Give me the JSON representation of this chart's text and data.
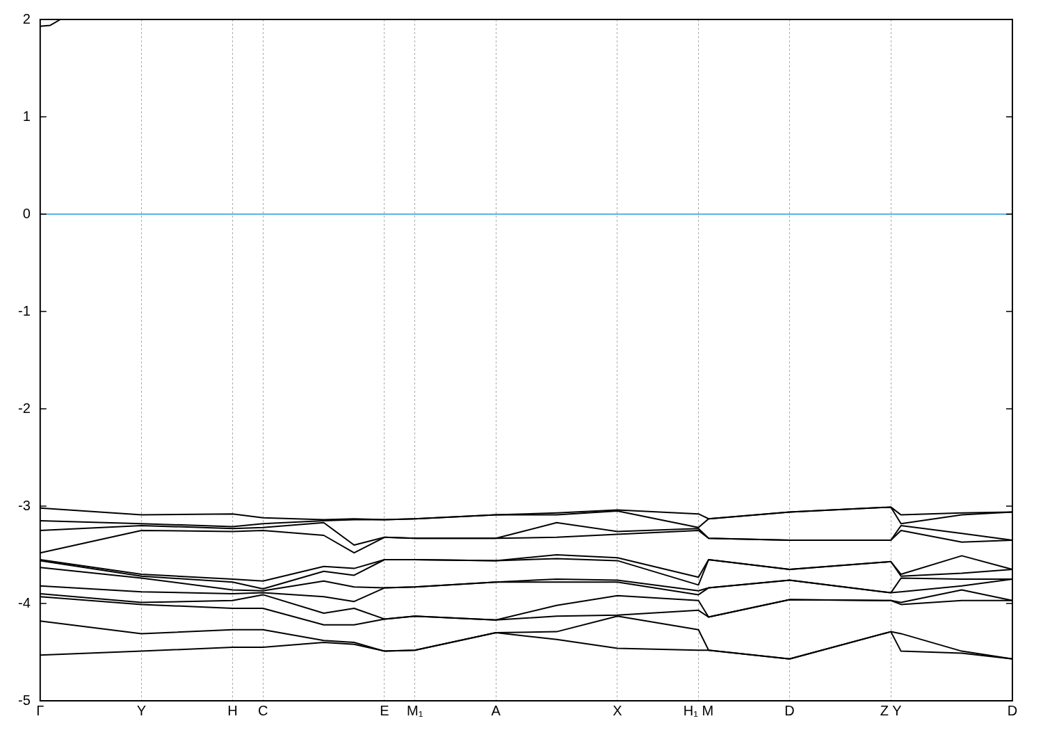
{
  "chart_data": {
    "type": "line",
    "categories": [
      "Γ",
      null,
      null,
      null,
      null,
      null,
      null,
      null,
      null,
      null,
      "Y",
      null,
      null,
      null,
      null,
      null,
      null,
      null,
      null,
      "H",
      null,
      null,
      "C",
      null,
      null,
      null,
      null,
      null,
      null,
      null,
      null,
      null,
      null,
      null,
      "E",
      null,
      null,
      "M₁",
      null,
      null,
      null,
      null,
      null,
      null,
      null,
      "A",
      null,
      null,
      null,
      null,
      null,
      null,
      null,
      null,
      null,
      null,
      null,
      "X",
      null,
      null,
      null,
      null,
      null,
      null,
      null,
      "H₁ M",
      null,
      null,
      null,
      null,
      null,
      null,
      null,
      null,
      "D",
      null,
      null,
      null,
      null,
      null,
      null,
      null,
      null,
      null,
      "Z Y",
      null,
      null,
      null,
      null,
      null,
      null,
      null,
      null,
      null,
      null,
      null,
      "D"
    ],
    "series": [
      {
        "color": "#000000",
        "values": [
          1.93,
          1.94,
          2.0,
          null,
          null,
          null,
          null,
          null,
          null,
          null,
          null,
          null,
          null,
          null,
          null,
          null,
          null,
          null,
          null,
          null,
          null,
          null,
          null,
          null,
          null,
          null,
          null,
          null,
          null,
          null,
          null,
          null,
          null,
          null,
          null,
          null,
          null,
          null,
          null,
          null,
          null,
          null,
          null,
          null,
          null,
          null,
          null,
          null,
          null,
          null,
          null,
          null,
          null,
          null,
          null,
          null,
          null,
          null,
          null,
          null,
          null,
          null,
          null,
          null,
          null,
          null,
          null,
          null,
          null,
          null,
          null,
          null,
          null,
          null,
          null,
          null,
          null,
          null,
          null,
          null,
          null,
          null,
          null,
          null,
          null,
          null,
          null,
          null,
          null,
          null,
          null,
          null,
          null,
          null,
          null,
          null,
          null
        ]
      },
      {
        "color": "#000000",
        "values": [
          -3.02,
          null,
          null,
          null,
          null,
          null,
          null,
          null,
          null,
          null,
          -3.09,
          null,
          null,
          null,
          null,
          null,
          null,
          null,
          null,
          -3.08,
          null,
          null,
          -3.12,
          null,
          null,
          null,
          null,
          null,
          -3.14,
          null,
          null,
          -3.13,
          null,
          null,
          -3.14,
          null,
          null,
          -3.13,
          null,
          null,
          null,
          null,
          null,
          null,
          null,
          -3.09,
          null,
          null,
          null,
          null,
          null,
          -3.07,
          null,
          null,
          null,
          null,
          null,
          -3.04,
          null,
          null,
          null,
          null,
          null,
          null,
          null,
          -3.08,
          -3.13,
          null,
          null,
          null,
          null,
          null,
          null,
          null,
          -3.06,
          null,
          null,
          null,
          null,
          null,
          null,
          null,
          null,
          null,
          -3.01,
          -3.09,
          null,
          null,
          null,
          null,
          null,
          -3.07,
          null,
          null,
          null,
          null,
          -3.06
        ]
      },
      {
        "color": "#000000",
        "values": [
          -3.15,
          null,
          null,
          null,
          null,
          null,
          null,
          null,
          null,
          null,
          -3.18,
          null,
          null,
          null,
          null,
          null,
          null,
          null,
          null,
          -3.21,
          null,
          null,
          -3.18,
          null,
          null,
          null,
          null,
          null,
          -3.15,
          null,
          null,
          -3.14,
          null,
          null,
          -3.14,
          null,
          null,
          -3.13,
          null,
          null,
          null,
          null,
          null,
          null,
          null,
          -3.09,
          null,
          null,
          null,
          null,
          null,
          -3.09,
          null,
          null,
          null,
          null,
          null,
          -3.05,
          null,
          null,
          null,
          null,
          null,
          null,
          null,
          -3.22,
          -3.13,
          null,
          null,
          null,
          null,
          null,
          null,
          null,
          -3.06,
          null,
          null,
          null,
          null,
          null,
          null,
          null,
          null,
          null,
          -3.01,
          -3.18,
          null,
          null,
          null,
          null,
          null,
          -3.09,
          null,
          null,
          null,
          null,
          -3.06
        ]
      },
      {
        "color": "#000000",
        "values": [
          -3.25,
          null,
          null,
          null,
          null,
          null,
          null,
          null,
          null,
          null,
          -3.2,
          null,
          null,
          null,
          null,
          null,
          null,
          null,
          null,
          -3.23,
          null,
          null,
          -3.22,
          null,
          null,
          null,
          null,
          null,
          -3.17,
          null,
          null,
          -3.4,
          null,
          null,
          -3.32,
          null,
          null,
          -3.33,
          null,
          null,
          null,
          null,
          null,
          null,
          null,
          -3.33,
          null,
          null,
          null,
          null,
          null,
          -3.17,
          null,
          null,
          null,
          null,
          null,
          -3.26,
          null,
          null,
          null,
          null,
          null,
          null,
          null,
          -3.23,
          -3.33,
          null,
          null,
          null,
          null,
          null,
          null,
          null,
          -3.35,
          null,
          null,
          null,
          null,
          null,
          null,
          null,
          null,
          null,
          -3.35,
          -3.2,
          null,
          null,
          null,
          null,
          null,
          -3.28,
          null,
          null,
          null,
          null,
          -3.35
        ]
      },
      {
        "color": "#000000",
        "values": [
          -3.48,
          null,
          null,
          null,
          null,
          null,
          null,
          null,
          null,
          null,
          -3.25,
          null,
          null,
          null,
          null,
          null,
          null,
          null,
          null,
          -3.26,
          null,
          null,
          -3.25,
          null,
          null,
          null,
          null,
          null,
          -3.3,
          null,
          null,
          -3.48,
          null,
          null,
          -3.32,
          null,
          null,
          -3.33,
          null,
          null,
          null,
          null,
          null,
          null,
          null,
          -3.33,
          null,
          null,
          null,
          null,
          null,
          -3.32,
          null,
          null,
          null,
          null,
          null,
          -3.29,
          null,
          null,
          null,
          null,
          null,
          null,
          null,
          -3.25,
          -3.33,
          null,
          null,
          null,
          null,
          null,
          null,
          null,
          -3.35,
          null,
          null,
          null,
          null,
          null,
          null,
          null,
          null,
          null,
          -3.35,
          -3.25,
          null,
          null,
          null,
          null,
          null,
          -3.37,
          null,
          null,
          null,
          null,
          -3.35
        ]
      },
      {
        "color": "#000000",
        "values": [
          -3.55,
          null,
          null,
          null,
          null,
          null,
          null,
          null,
          null,
          null,
          -3.7,
          null,
          null,
          null,
          null,
          null,
          null,
          null,
          null,
          -3.75,
          null,
          null,
          -3.77,
          null,
          null,
          null,
          null,
          null,
          -3.62,
          null,
          null,
          -3.64,
          null,
          null,
          -3.55,
          null,
          null,
          -3.55,
          null,
          null,
          null,
          null,
          null,
          null,
          null,
          -3.56,
          null,
          null,
          null,
          null,
          null,
          -3.5,
          null,
          null,
          null,
          null,
          null,
          -3.53,
          null,
          null,
          null,
          null,
          null,
          null,
          null,
          -3.73,
          -3.55,
          null,
          null,
          null,
          null,
          null,
          null,
          null,
          -3.65,
          null,
          null,
          null,
          null,
          null,
          null,
          null,
          null,
          null,
          -3.57,
          -3.7,
          null,
          null,
          null,
          null,
          null,
          -3.51,
          null,
          null,
          null,
          null,
          -3.65
        ]
      },
      {
        "color": "#000000",
        "values": [
          -3.56,
          null,
          null,
          null,
          null,
          null,
          null,
          null,
          null,
          null,
          -3.72,
          null,
          null,
          null,
          null,
          null,
          null,
          null,
          null,
          -3.78,
          null,
          null,
          -3.85,
          null,
          null,
          null,
          null,
          null,
          -3.67,
          null,
          null,
          -3.71,
          null,
          null,
          -3.55,
          null,
          null,
          -3.55,
          null,
          null,
          null,
          null,
          null,
          null,
          null,
          -3.56,
          null,
          null,
          null,
          null,
          null,
          -3.54,
          null,
          null,
          null,
          null,
          null,
          -3.56,
          null,
          null,
          null,
          null,
          null,
          null,
          null,
          -3.81,
          -3.55,
          null,
          null,
          null,
          null,
          null,
          null,
          null,
          -3.65,
          null,
          null,
          null,
          null,
          null,
          null,
          null,
          null,
          null,
          -3.57,
          -3.72,
          null,
          null,
          null,
          null,
          null,
          -3.69,
          null,
          null,
          null,
          null,
          -3.65
        ]
      },
      {
        "color": "#000000",
        "values": [
          -3.63,
          null,
          null,
          null,
          null,
          null,
          null,
          null,
          null,
          null,
          -3.74,
          null,
          null,
          null,
          null,
          null,
          null,
          null,
          null,
          -3.86,
          null,
          null,
          -3.87,
          null,
          null,
          null,
          null,
          null,
          -3.77,
          null,
          null,
          -3.83,
          null,
          null,
          -3.84,
          null,
          null,
          -3.83,
          null,
          null,
          null,
          null,
          null,
          null,
          null,
          -3.78,
          null,
          null,
          null,
          null,
          null,
          -3.75,
          null,
          null,
          null,
          null,
          null,
          -3.76,
          null,
          null,
          null,
          null,
          null,
          null,
          null,
          -3.87,
          -3.84,
          null,
          null,
          null,
          null,
          null,
          null,
          null,
          -3.76,
          null,
          null,
          null,
          null,
          null,
          null,
          null,
          null,
          null,
          -3.89,
          -3.74,
          null,
          null,
          null,
          null,
          null,
          -3.75,
          null,
          null,
          null,
          null,
          -3.75
        ]
      },
      {
        "color": "#000000",
        "values": [
          -3.82,
          null,
          null,
          null,
          null,
          null,
          null,
          null,
          null,
          null,
          -3.88,
          null,
          null,
          null,
          null,
          null,
          null,
          null,
          null,
          -3.9,
          null,
          null,
          -3.89,
          null,
          null,
          null,
          null,
          null,
          -3.93,
          null,
          null,
          -3.98,
          null,
          null,
          -3.84,
          null,
          null,
          -3.83,
          null,
          null,
          null,
          null,
          null,
          null,
          null,
          -3.78,
          null,
          null,
          null,
          null,
          null,
          -3.78,
          null,
          null,
          null,
          null,
          null,
          -3.78,
          null,
          null,
          null,
          null,
          null,
          null,
          null,
          -3.91,
          -3.84,
          null,
          null,
          null,
          null,
          null,
          null,
          null,
          -3.76,
          null,
          null,
          null,
          null,
          null,
          null,
          null,
          null,
          null,
          -3.89,
          -3.88,
          null,
          null,
          null,
          null,
          null,
          -3.82,
          null,
          null,
          null,
          null,
          -3.75
        ]
      },
      {
        "color": "#000000",
        "values": [
          -3.9,
          null,
          null,
          null,
          null,
          null,
          null,
          null,
          null,
          null,
          -3.99,
          null,
          null,
          null,
          null,
          null,
          null,
          null,
          null,
          -3.97,
          null,
          null,
          -3.91,
          null,
          null,
          null,
          null,
          null,
          -4.1,
          null,
          null,
          -4.05,
          null,
          null,
          -4.16,
          null,
          null,
          -4.13,
          null,
          null,
          null,
          null,
          null,
          null,
          null,
          -4.17,
          null,
          null,
          null,
          null,
          null,
          -4.02,
          null,
          null,
          null,
          null,
          null,
          -3.92,
          null,
          null,
          null,
          null,
          null,
          null,
          null,
          -3.97,
          -4.14,
          null,
          null,
          null,
          null,
          null,
          null,
          null,
          -3.96,
          null,
          null,
          null,
          null,
          null,
          null,
          null,
          null,
          null,
          -3.97,
          -3.99,
          null,
          null,
          null,
          null,
          null,
          -3.86,
          null,
          null,
          null,
          null,
          -3.97
        ]
      },
      {
        "color": "#000000",
        "values": [
          -3.93,
          null,
          null,
          null,
          null,
          null,
          null,
          null,
          null,
          null,
          -4.01,
          null,
          null,
          null,
          null,
          null,
          null,
          null,
          null,
          -4.05,
          null,
          null,
          -4.05,
          null,
          null,
          null,
          null,
          null,
          -4.22,
          null,
          null,
          -4.22,
          null,
          null,
          -4.16,
          null,
          null,
          -4.13,
          null,
          null,
          null,
          null,
          null,
          null,
          null,
          -4.17,
          null,
          null,
          null,
          null,
          null,
          -4.13,
          null,
          null,
          null,
          null,
          null,
          -4.12,
          null,
          null,
          null,
          null,
          null,
          null,
          null,
          -4.07,
          -4.14,
          null,
          null,
          null,
          null,
          null,
          null,
          null,
          -3.96,
          null,
          null,
          null,
          null,
          null,
          null,
          null,
          null,
          null,
          -3.97,
          -4.01,
          null,
          null,
          null,
          null,
          null,
          -3.97,
          null,
          null,
          null,
          null,
          -3.97
        ]
      },
      {
        "color": "#000000",
        "values": [
          -4.18,
          null,
          null,
          null,
          null,
          null,
          null,
          null,
          null,
          null,
          -4.31,
          null,
          null,
          null,
          null,
          null,
          null,
          null,
          null,
          -4.27,
          null,
          null,
          -4.27,
          null,
          null,
          null,
          null,
          null,
          -4.38,
          null,
          null,
          -4.4,
          null,
          null,
          -4.49,
          null,
          null,
          -4.48,
          null,
          null,
          null,
          null,
          null,
          null,
          null,
          -4.3,
          null,
          null,
          null,
          null,
          null,
          -4.29,
          null,
          null,
          null,
          null,
          null,
          -4.13,
          null,
          null,
          null,
          null,
          null,
          null,
          null,
          -4.27,
          -4.48,
          null,
          null,
          null,
          null,
          null,
          null,
          null,
          -4.57,
          null,
          null,
          null,
          null,
          null,
          null,
          null,
          null,
          null,
          -4.29,
          -4.31,
          null,
          null,
          null,
          null,
          null,
          -4.49,
          null,
          null,
          null,
          null,
          -4.57
        ]
      },
      {
        "color": "#000000",
        "values": [
          -4.53,
          null,
          null,
          null,
          null,
          null,
          null,
          null,
          null,
          null,
          -4.49,
          null,
          null,
          null,
          null,
          null,
          null,
          null,
          null,
          -4.45,
          null,
          null,
          -4.45,
          null,
          null,
          null,
          null,
          null,
          -4.4,
          null,
          null,
          -4.42,
          null,
          null,
          -4.49,
          null,
          null,
          -4.48,
          null,
          null,
          null,
          null,
          null,
          null,
          null,
          -4.3,
          null,
          null,
          null,
          null,
          null,
          -4.37,
          null,
          null,
          null,
          null,
          null,
          -4.46,
          null,
          null,
          null,
          null,
          null,
          null,
          null,
          -4.48,
          -4.48,
          null,
          null,
          null,
          null,
          null,
          null,
          null,
          -4.57,
          null,
          null,
          null,
          null,
          null,
          null,
          null,
          null,
          null,
          -4.29,
          -4.49,
          null,
          null,
          null,
          null,
          null,
          -4.51,
          null,
          null,
          null,
          null,
          -4.57
        ]
      }
    ],
    "ylim": [
      -5,
      2
    ],
    "yticks": [
      -5,
      -4,
      -3,
      -2,
      -1,
      0,
      1,
      2
    ],
    "ref_lines": [
      {
        "axis": "y",
        "value": 0,
        "color": "#56b4e9"
      }
    ],
    "grid": "x",
    "line_style": "solid",
    "legend": false
  }
}
